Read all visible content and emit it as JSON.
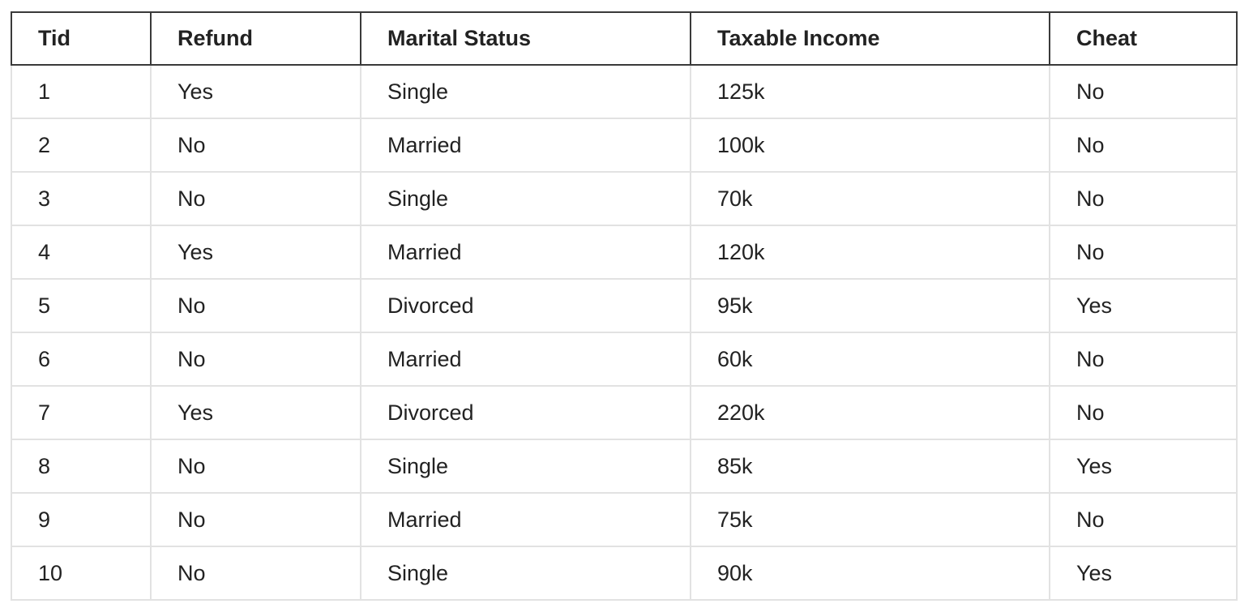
{
  "table": {
    "headers": [
      "Tid",
      "Refund",
      "Marital Status",
      "Taxable Income",
      "Cheat"
    ],
    "rows": [
      [
        "1",
        "Yes",
        "Single",
        "125k",
        "No"
      ],
      [
        "2",
        "No",
        "Married",
        "100k",
        "No"
      ],
      [
        "3",
        "No",
        "Single",
        "70k",
        "No"
      ],
      [
        "4",
        "Yes",
        "Married",
        "120k",
        "No"
      ],
      [
        "5",
        "No",
        "Divorced",
        "95k",
        "Yes"
      ],
      [
        "6",
        "No",
        "Married",
        "60k",
        "No"
      ],
      [
        "7",
        "Yes",
        "Divorced",
        "220k",
        "No"
      ],
      [
        "8",
        "No",
        "Single",
        "85k",
        "Yes"
      ],
      [
        "9",
        "No",
        "Married",
        "75k",
        "No"
      ],
      [
        "10",
        "No",
        "Single",
        "90k",
        "Yes"
      ]
    ]
  }
}
